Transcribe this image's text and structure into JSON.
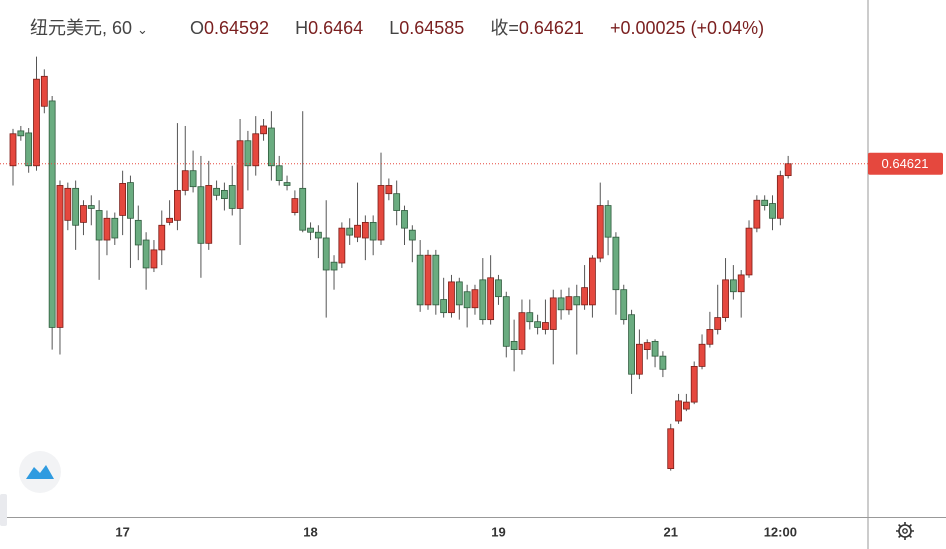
{
  "chart_data": {
    "type": "candlestick",
    "title": "纽元美元, 60",
    "ohlc_labels": [
      "O",
      "H",
      "L",
      "收="
    ],
    "change": "+0.00025",
    "change_pct": "(+0.04%)",
    "up_color": "#e5483e",
    "down_color": "#6aac80",
    "ylim": [
      0.6376,
      0.6502
    ],
    "categories": [
      null,
      null,
      null,
      null,
      null,
      null,
      null,
      null,
      null,
      null,
      null,
      null,
      null,
      null,
      "17",
      null,
      null,
      null,
      null,
      null,
      null,
      null,
      null,
      null,
      null,
      null,
      null,
      null,
      null,
      null,
      null,
      null,
      null,
      null,
      null,
      null,
      null,
      null,
      "18",
      null,
      null,
      null,
      null,
      null,
      null,
      null,
      null,
      null,
      null,
      null,
      null,
      null,
      null,
      null,
      null,
      null,
      null,
      null,
      null,
      null,
      null,
      null,
      "19",
      null,
      null,
      null,
      null,
      null,
      null,
      null,
      null,
      null,
      null,
      null,
      null,
      null,
      null,
      null,
      null,
      null,
      null,
      null,
      null,
      null,
      "21",
      null,
      null,
      null,
      null,
      null,
      null,
      null,
      null,
      null,
      null,
      null,
      null,
      null,
      "12:00",
      null
    ],
    "open": [
      0.64616,
      0.64701,
      0.64696,
      0.64616,
      0.64761,
      0.64774,
      0.64222,
      0.64483,
      0.64561,
      0.64478,
      0.64519,
      0.64507,
      0.64435,
      0.64488,
      0.64495,
      0.64575,
      0.64483,
      0.64435,
      0.64367,
      0.64411,
      0.64478,
      0.64483,
      0.64556,
      0.64604,
      0.64565,
      0.64427,
      0.64561,
      0.64556,
      0.64568,
      0.64512,
      0.64677,
      0.64616,
      0.64694,
      0.64708,
      0.64616,
      0.64575,
      0.64502,
      0.64561,
      0.64464,
      0.64454,
      0.6444,
      0.64381,
      0.64379,
      0.64464,
      0.64442,
      0.6444,
      0.64478,
      0.64435,
      0.64548,
      0.64548,
      0.64507,
      0.64459,
      0.64398,
      0.64277,
      0.64398,
      0.6429,
      0.64258,
      0.64333,
      0.64309,
      0.6427,
      0.64338,
      0.64241,
      0.64338,
      0.64297,
      0.64188,
      0.64168,
      0.64258,
      0.64236,
      0.64217,
      0.64217,
      0.64294,
      0.64265,
      0.64297,
      0.64277,
      0.64277,
      0.64391,
      0.64519,
      0.64442,
      0.64314,
      0.64253,
      0.64108,
      0.64168,
      0.64188,
      0.64152,
      0.63878,
      0.63994,
      0.64023,
      0.6404,
      0.64127,
      0.64181,
      0.64217,
      0.64246,
      0.64338,
      0.64309,
      0.6435,
      0.64464,
      0.64532,
      0.64524,
      0.64488,
      0.64592
    ],
    "high": [
      0.64706,
      0.64713,
      0.64708,
      0.64882,
      0.64851,
      0.64786,
      0.6458,
      0.64575,
      0.6458,
      0.64532,
      0.64544,
      0.64532,
      0.64507,
      0.64502,
      0.64604,
      0.64592,
      0.64519,
      0.64454,
      0.64435,
      0.64507,
      0.64532,
      0.6472,
      0.64713,
      0.64653,
      0.6464,
      0.64628,
      0.6458,
      0.64575,
      0.64616,
      0.6473,
      0.64701,
      0.64737,
      0.6473,
      0.64749,
      0.6464,
      0.64592,
      0.64556,
      0.64749,
      0.64478,
      0.64471,
      0.64532,
      0.64398,
      0.64478,
      0.64488,
      0.64575,
      0.64495,
      0.64495,
      0.64648,
      0.64585,
      0.6458,
      0.64519,
      0.64471,
      0.64435,
      0.64411,
      0.64411,
      0.64343,
      0.6435,
      0.64343,
      0.64326,
      0.64326,
      0.64391,
      0.64398,
      0.6435,
      0.64309,
      0.64241,
      0.6429,
      0.6429,
      0.64253,
      0.6429,
      0.64314,
      0.64314,
      0.64319,
      0.64326,
      0.64374,
      0.64398,
      0.64575,
      0.64532,
      0.64454,
      0.64326,
      0.64265,
      0.64217,
      0.64193,
      0.64193,
      0.64164,
      0.63987,
      0.6406,
      0.6406,
      0.64139,
      0.64205,
      0.6426,
      0.64326,
      0.64391,
      0.64374,
      0.64362,
      0.64483,
      0.64544,
      0.64544,
      0.64544,
      0.64604,
      0.6464
    ],
    "low": [
      0.64568,
      0.64677,
      0.64599,
      0.64604,
      0.64744,
      0.64168,
      0.64156,
      0.64459,
      0.64411,
      0.64447,
      0.64471,
      0.64338,
      0.64398,
      0.64423,
      0.64447,
      0.64367,
      0.64386,
      0.64314,
      0.64357,
      0.64374,
      0.64471,
      0.64459,
      0.64544,
      0.64551,
      0.64343,
      0.64411,
      0.64532,
      0.64507,
      0.64495,
      0.64423,
      0.64556,
      0.64592,
      0.64677,
      0.6458,
      0.64568,
      0.64556,
      0.64495,
      0.64454,
      0.64435,
      0.64391,
      0.64246,
      0.64314,
      0.64367,
      0.64423,
      0.6443,
      0.64386,
      0.64398,
      0.64423,
      0.64532,
      0.64471,
      0.64423,
      0.64381,
      0.6426,
      0.64265,
      0.64253,
      0.64246,
      0.64246,
      0.64241,
      0.64222,
      0.64253,
      0.64229,
      0.64229,
      0.64277,
      0.64149,
      0.64115,
      0.64156,
      0.64217,
      0.64205,
      0.64205,
      0.64132,
      0.64241,
      0.64253,
      0.64156,
      0.64265,
      0.64246,
      0.64381,
      0.64398,
      0.64253,
      0.64229,
      0.6406,
      0.64096,
      0.64144,
      0.64125,
      0.64101,
      0.63873,
      0.63987,
      0.64018,
      0.64035,
      0.6412,
      0.64173,
      0.64205,
      0.64236,
      0.6429,
      0.64246,
      0.64343,
      0.64454,
      0.64507,
      0.64459,
      0.64471,
      0.64585
    ],
    "close": [
      0.64694,
      0.64689,
      0.64616,
      0.64827,
      0.64834,
      0.64222,
      0.64568,
      0.64561,
      0.64471,
      0.64519,
      0.64512,
      0.64435,
      0.64488,
      0.6444,
      0.64573,
      0.64488,
      0.64423,
      0.64367,
      0.64411,
      0.64471,
      0.64488,
      0.64556,
      0.64604,
      0.64565,
      0.64427,
      0.64568,
      0.64544,
      0.64536,
      0.64512,
      0.64677,
      0.64616,
      0.64694,
      0.64713,
      0.64616,
      0.6458,
      0.64568,
      0.64536,
      0.64459,
      0.64454,
      0.6444,
      0.64362,
      0.64362,
      0.64464,
      0.64447,
      0.64471,
      0.64478,
      0.64435,
      0.64568,
      0.64568,
      0.64507,
      0.64464,
      0.64435,
      0.64277,
      0.64398,
      0.64277,
      0.64258,
      0.64333,
      0.64277,
      0.6427,
      0.64314,
      0.64241,
      0.64343,
      0.64297,
      0.64176,
      0.64168,
      0.64258,
      0.64236,
      0.64222,
      0.64234,
      0.64294,
      0.64265,
      0.64297,
      0.64277,
      0.64319,
      0.64391,
      0.64519,
      0.64442,
      0.64314,
      0.64241,
      0.64108,
      0.64181,
      0.64185,
      0.64152,
      0.6412,
      0.63975,
      0.64043,
      0.6404,
      0.64127,
      0.64181,
      0.64217,
      0.64246,
      0.64338,
      0.64309,
      0.6435,
      0.64464,
      0.64532,
      0.64519,
      0.64488,
      0.64592,
      0.64621
    ]
  }
}
